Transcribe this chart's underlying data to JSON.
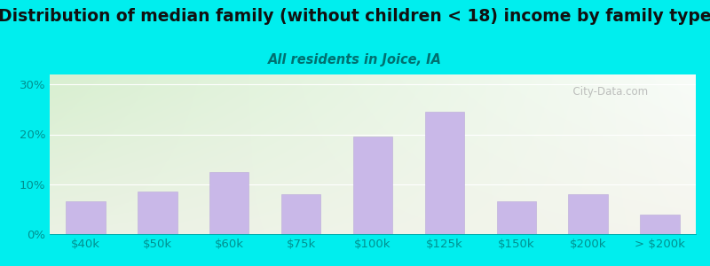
{
  "title": "Distribution of median family (without children < 18) income by family type",
  "subtitle": "All residents in Joice, IA",
  "categories": [
    "$40k",
    "$50k",
    "$60k",
    "$75k",
    "$100k",
    "$125k",
    "$150k",
    "$200k",
    "> $200k"
  ],
  "values": [
    6.5,
    8.5,
    12.5,
    8.0,
    19.5,
    24.5,
    6.5,
    8.0,
    4.0
  ],
  "bar_color": "#c9b8e8",
  "bar_edge_color": "#baaad8",
  "bg_color": "#00eeee",
  "plot_bg_topleft": "#d8efd0",
  "plot_bg_bottomright": "#f5f5ee",
  "yticks": [
    0,
    10,
    20,
    30
  ],
  "ytick_labels": [
    "0%",
    "10%",
    "20%",
    "30%"
  ],
  "ylim": [
    0,
    32
  ],
  "title_color": "#111111",
  "subtitle_color": "#007070",
  "tick_color": "#009090",
  "title_fontsize": 13.5,
  "subtitle_fontsize": 10.5,
  "axis_fontsize": 9.5,
  "watermark": "  City-Data.com"
}
